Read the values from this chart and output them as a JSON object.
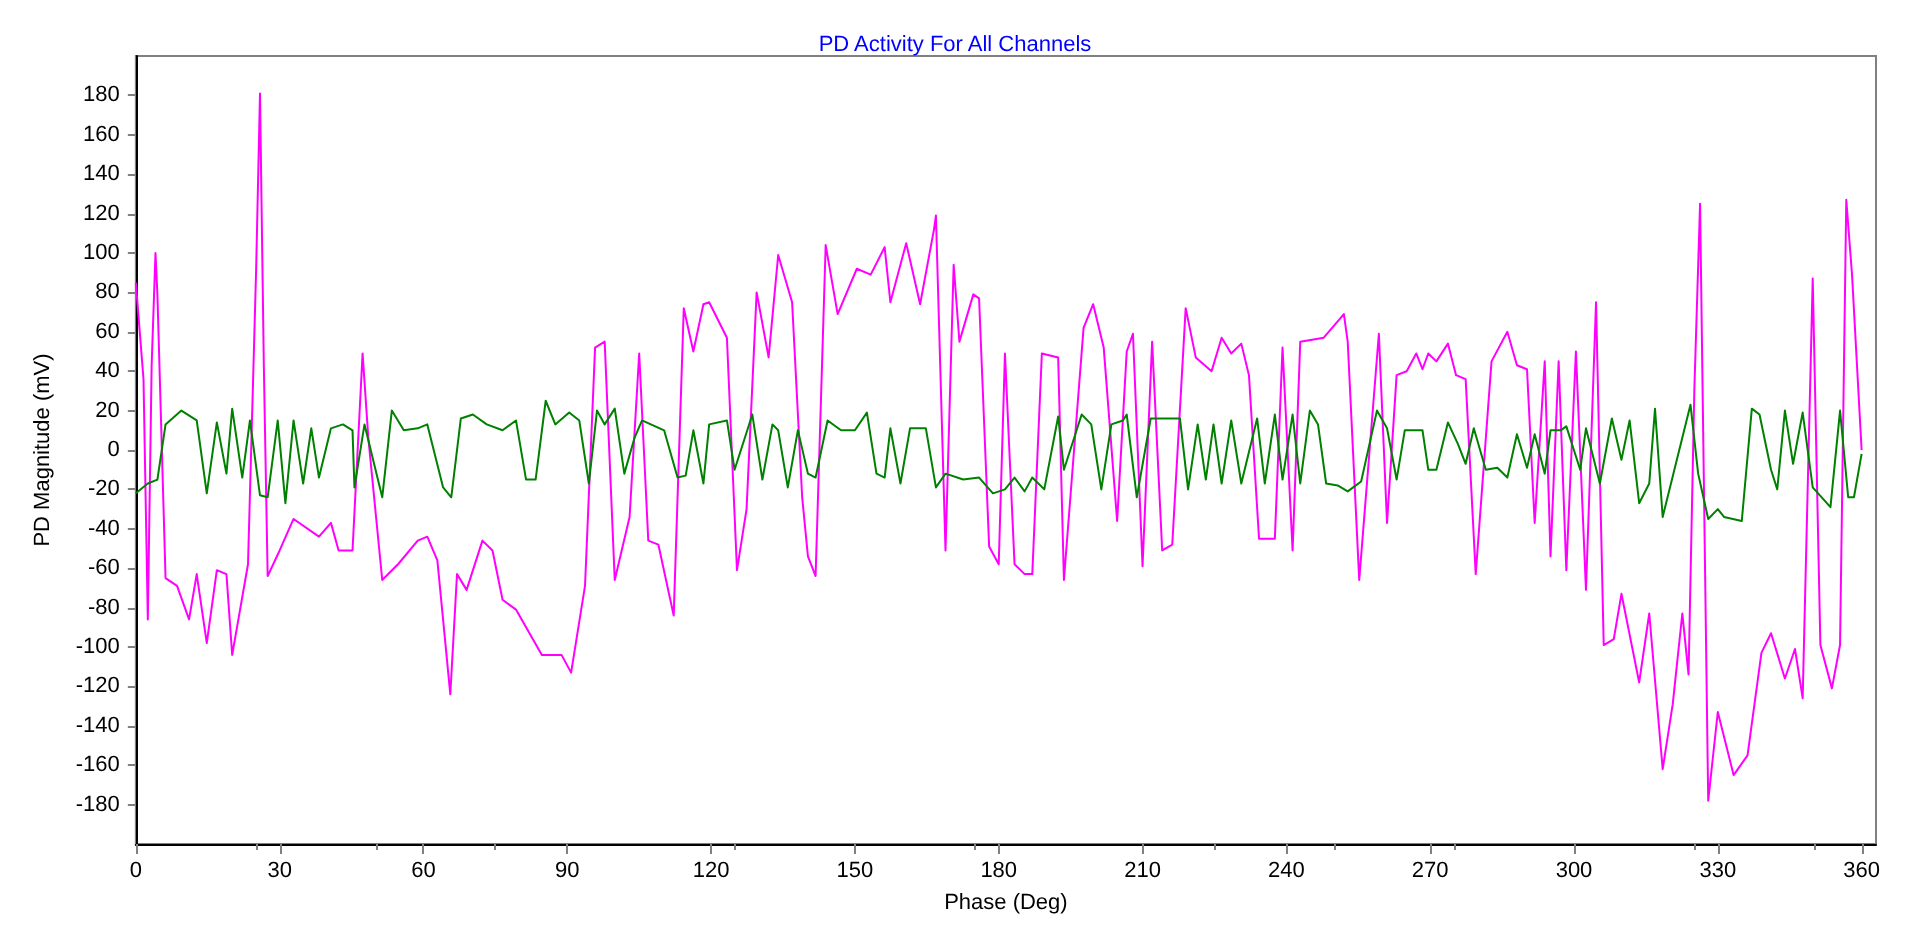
{
  "chart_data": {
    "type": "line",
    "title": "PD Activity For All Channels",
    "xlabel": "Phase (Deg)",
    "ylabel": "PD Magnitude (mV)",
    "xlim": [
      0,
      363
    ],
    "ylim": [
      -200,
      200
    ],
    "xticks": [
      0,
      30,
      60,
      90,
      120,
      150,
      180,
      210,
      240,
      270,
      300,
      330,
      360
    ],
    "yticks": [
      -180,
      -160,
      -140,
      -120,
      -100,
      -80,
      -60,
      -40,
      -20,
      0,
      20,
      40,
      60,
      80,
      100,
      120,
      140,
      160,
      180
    ],
    "grid": false,
    "marker": "none",
    "line_style": "solid",
    "series": [
      {
        "color": "#ff00ff",
        "x": [
          0,
          1.6,
          2.5,
          3.3,
          4.1,
          4.5,
          6.2,
          8.6,
          11.1,
          12.7,
          14.8,
          16.9,
          18.9,
          20.1,
          23.4,
          25.1,
          25.9,
          26.7,
          27.5,
          30,
          32.9,
          38.2,
          40.7,
          42.3,
          45.2,
          47.3,
          48.5,
          51.4,
          54.7,
          58.8,
          60.8,
          62.9,
          65.6,
          67,
          69,
          72.3,
          74.4,
          76.5,
          79.3,
          84.7,
          88.8,
          90.8,
          93.7,
          95.8,
          97.8,
          99.9,
          103,
          105,
          106.9,
          109,
          112.2,
          114.3,
          116.3,
          118.4,
          119.6,
          123.3,
          125.4,
          127.4,
          129.5,
          132,
          134,
          136.9,
          139,
          140.2,
          141.8,
          143.9,
          146.4,
          150.4,
          153.3,
          156.2,
          157.4,
          160.7,
          163.6,
          166.5,
          166.9,
          168.9,
          170.6,
          171.8,
          174.7,
          175.9,
          178,
          180,
          181.3,
          183.3,
          185.4,
          187,
          189,
          192.4,
          193.6,
          197.7,
          199.7,
          201.9,
          204.7,
          206.7,
          208,
          210,
          212,
          214.1,
          216.2,
          219,
          221.1,
          224.4,
          226.5,
          228.5,
          230.6,
          232.2,
          234.3,
          237.6,
          239.2,
          241.3,
          242.9,
          247.8,
          252,
          252.8,
          255.2,
          259.3,
          261,
          263,
          265.1,
          267.1,
          268.4,
          269.6,
          271.3,
          273.7,
          275.4,
          277.4,
          279.5,
          282.8,
          286.1,
          288.1,
          290.2,
          291.8,
          293.9,
          295.1,
          296.8,
          298.4,
          300.4,
          302.5,
          304.6,
          306.2,
          308.3,
          309.9,
          313.6,
          315.7,
          318.5,
          320.6,
          322.6,
          323.9,
          325.1,
          326.3,
          328,
          330,
          333.3,
          336.2,
          339.1,
          341.1,
          344,
          346.1,
          347.7,
          349.8,
          351.4,
          353.8,
          355.5,
          356.8,
          358,
          360
        ],
        "values": [
          85,
          36,
          -86,
          43,
          100,
          79,
          -65,
          -69,
          -86,
          -63,
          -98,
          -61,
          -63,
          -104,
          -58,
          92,
          181,
          43,
          -64,
          -51,
          -35,
          -44,
          -37,
          -51,
          -51,
          49,
          6,
          -66,
          -58,
          -46,
          -44,
          -56,
          -124,
          -63,
          -71,
          -46,
          -51,
          -76,
          -81,
          -104,
          -104,
          -113,
          -69,
          52,
          55,
          -66,
          -34,
          49,
          -46,
          -48,
          -84,
          72,
          50,
          74,
          75,
          57,
          -61,
          -30,
          80,
          47,
          99,
          75,
          -24,
          -54,
          -64,
          104,
          69,
          92,
          89,
          103,
          75,
          105,
          74,
          112,
          119,
          -51,
          94,
          55,
          79,
          77,
          -49,
          -58,
          49,
          -58,
          -63,
          -63,
          49,
          47,
          -66,
          62,
          74,
          52,
          -36,
          50,
          59,
          -59,
          55,
          -51,
          -48,
          72,
          47,
          40,
          57,
          49,
          54,
          38,
          -45,
          -45,
          52,
          -51,
          55,
          57,
          69,
          55,
          -66,
          59,
          -37,
          38,
          40,
          49,
          41,
          49,
          45,
          54,
          38,
          36,
          -63,
          45,
          60,
          43,
          41,
          -37,
          45,
          -54,
          45,
          -61,
          50,
          -71,
          75,
          -99,
          -96,
          -73,
          -118,
          -83,
          -162,
          -129,
          -83,
          -114,
          30,
          125,
          -178,
          -133,
          -165,
          -155,
          -103,
          -93,
          -116,
          -101,
          -126,
          87,
          -99,
          -121,
          -99,
          127,
          89,
          0
        ]
      },
      {
        "color": "#008000",
        "x": [
          0,
          2.5,
          4.5,
          6.2,
          9.5,
          12.7,
          14.8,
          16.9,
          18.9,
          20.1,
          22.2,
          23.8,
          25.9,
          27.5,
          29.6,
          31.2,
          32.9,
          34.9,
          36.6,
          38.2,
          40.7,
          43.2,
          45.2,
          45.6,
          47.7,
          51.4,
          53.4,
          55.9,
          58.8,
          60.8,
          64.1,
          65.8,
          67.8,
          70.3,
          73.2,
          76.5,
          79.3,
          81.4,
          83.4,
          85.5,
          87.5,
          90.4,
          92.5,
          94.5,
          96.2,
          97.8,
          99.9,
          101.9,
          104,
          105.6,
          110.2,
          113,
          114.7,
          116.3,
          118.4,
          119.6,
          123.3,
          124.9,
          128.6,
          130.7,
          132.8,
          134,
          136,
          138.1,
          140.2,
          141.8,
          144.3,
          147.1,
          150,
          152.5,
          154.5,
          156.2,
          157.4,
          159.5,
          161.5,
          164.8,
          166.9,
          168.9,
          172.6,
          175.9,
          178.8,
          181.3,
          183.3,
          185.4,
          187,
          189.5,
          192.4,
          193.6,
          197.3,
          199.3,
          201.4,
          203.5,
          205.9,
          206.7,
          208.8,
          211.7,
          216.2,
          217.8,
          219.5,
          221.5,
          223.2,
          224.8,
          226.5,
          228.5,
          230.6,
          233.9,
          235.5,
          237.6,
          239.2,
          241.3,
          242.9,
          244.9,
          246.6,
          248.3,
          250.7,
          252.8,
          255.6,
          258.9,
          261,
          263,
          264.7,
          268.4,
          269.6,
          271.3,
          273.7,
          275.8,
          277.4,
          279.1,
          281.6,
          284,
          286.1,
          288.1,
          290.2,
          291.8,
          293.9,
          295.1,
          297.2,
          298.4,
          301.3,
          302.5,
          305.4,
          307.9,
          309.9,
          311.6,
          313.6,
          315.7,
          316.9,
          318.5,
          324.3,
          325.9,
          328,
          330,
          331.3,
          335,
          337.1,
          338.7,
          341.1,
          342.4,
          344,
          345.7,
          347.7,
          349.8,
          353.5,
          355.5,
          357.2,
          358.4,
          360
        ],
        "values": [
          -22,
          -17,
          -15,
          13,
          20,
          15,
          -22,
          14,
          -12,
          21,
          -14,
          15,
          -23,
          -24,
          15,
          -27,
          15,
          -17,
          11,
          -14,
          11,
          13,
          10,
          -19,
          13,
          -24,
          20,
          10,
          11,
          13,
          -19,
          -24,
          16,
          18,
          13,
          10,
          15,
          -15,
          -15,
          25,
          13,
          19,
          15,
          -17,
          20,
          13,
          21,
          -12,
          6,
          15,
          10,
          -14,
          -13,
          10,
          -17,
          13,
          15,
          -10,
          18,
          -15,
          13,
          10,
          -19,
          10,
          -12,
          -14,
          15,
          10,
          10,
          19,
          -12,
          -14,
          11,
          -17,
          11,
          11,
          -19,
          -12,
          -15,
          -14,
          -22,
          -20,
          -14,
          -21,
          -14,
          -20,
          17,
          -10,
          18,
          13,
          -20,
          13,
          15,
          18,
          -24,
          16,
          16,
          16,
          -20,
          13,
          -15,
          13,
          -17,
          15,
          -17,
          16,
          -17,
          18,
          -15,
          18,
          -17,
          20,
          13,
          -17,
          -18,
          -21,
          -16,
          20,
          11,
          -15,
          10,
          10,
          -10,
          -10,
          14,
          3,
          -7,
          11,
          -10,
          -9,
          -14,
          8,
          -9,
          8,
          -12,
          10,
          10,
          12,
          -10,
          11,
          -17,
          16,
          -5,
          15,
          -27,
          -17,
          21,
          -34,
          23,
          -12,
          -35,
          -30,
          -34,
          -36,
          21,
          18,
          -10,
          -20,
          20,
          -7,
          19,
          -19,
          -29,
          20,
          -24,
          -24,
          -2
        ]
      }
    ]
  }
}
